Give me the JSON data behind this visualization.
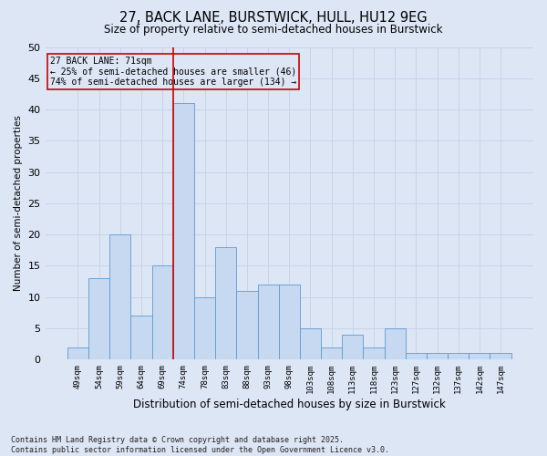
{
  "title1": "27, BACK LANE, BURSTWICK, HULL, HU12 9EG",
  "title2": "Size of property relative to semi-detached houses in Burstwick",
  "xlabel": "Distribution of semi-detached houses by size in Burstwick",
  "ylabel": "Number of semi-detached properties",
  "footnote": "Contains HM Land Registry data © Crown copyright and database right 2025.\nContains public sector information licensed under the Open Government Licence v3.0.",
  "categories": [
    "49sqm",
    "54sqm",
    "59sqm",
    "64sqm",
    "69sqm",
    "74sqm",
    "78sqm",
    "83sqm",
    "88sqm",
    "93sqm",
    "98sqm",
    "103sqm",
    "108sqm",
    "113sqm",
    "118sqm",
    "123sqm",
    "127sqm",
    "132sqm",
    "137sqm",
    "142sqm",
    "147sqm"
  ],
  "values": [
    2,
    13,
    20,
    7,
    15,
    41,
    10,
    18,
    11,
    12,
    12,
    5,
    2,
    4,
    2,
    5,
    1,
    1,
    1,
    1,
    1
  ],
  "bar_color": "#c6d9f1",
  "bar_edge_color": "#5b9bd5",
  "grid_color": "#c8d4e8",
  "background_color": "#dce6f5",
  "plot_bg_color": "#dce6f5",
  "red_line_color": "#cc0000",
  "annotation_text": "27 BACK LANE: 71sqm\n← 25% of semi-detached houses are smaller (46)\n74% of semi-detached houses are larger (134) →",
  "annotation_box_color": "#cc0000",
  "property_bar_index": 5,
  "ylim": [
    0,
    50
  ],
  "yticks": [
    0,
    5,
    10,
    15,
    20,
    25,
    30,
    35,
    40,
    45,
    50
  ]
}
